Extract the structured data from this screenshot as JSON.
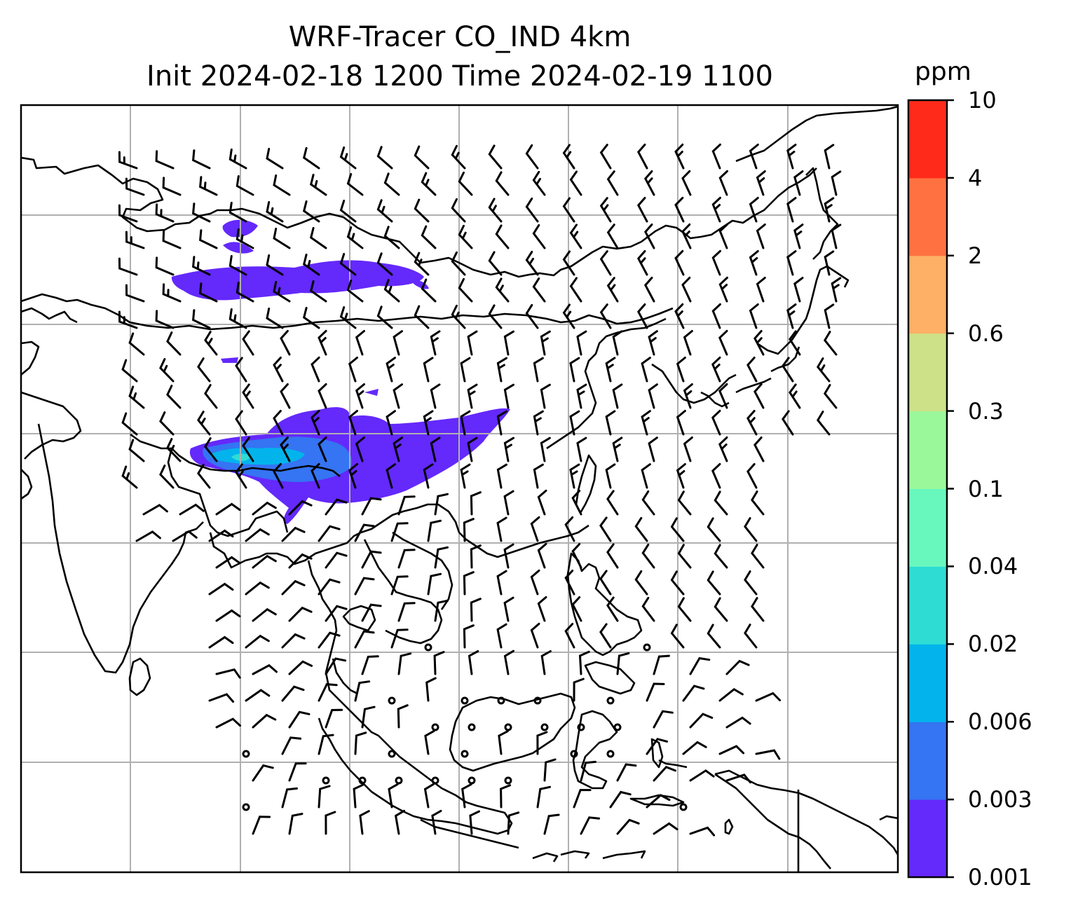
{
  "title": {
    "line1": "WRF-Tracer CO_IND 4km",
    "line2": "Init 2024-02-18 1200 Time 2024-02-19 1100"
  },
  "colorbar": {
    "unit": "ppm",
    "levels": [
      "0.001",
      "0.003",
      "0.006",
      "0.02",
      "0.04",
      "0.1",
      "0.3",
      "0.6",
      "2",
      "4",
      "10"
    ],
    "colors": [
      "#6429fb",
      "#3574f2",
      "#03b4ec",
      "#2fdcd4",
      "#68f8be",
      "#9af89a",
      "#cde188",
      "#fdb066",
      "#ff7141",
      "#ff2a1a"
    ]
  },
  "map": {
    "coastline_color": "#000000",
    "grid_color": "#b0b0b0",
    "calm_marker": "circle",
    "plume_colors": {
      "low": "#6429fb",
      "mid": "#3574f2",
      "high": "#03b4ec",
      "peak": "#2fdcd4"
    }
  }
}
